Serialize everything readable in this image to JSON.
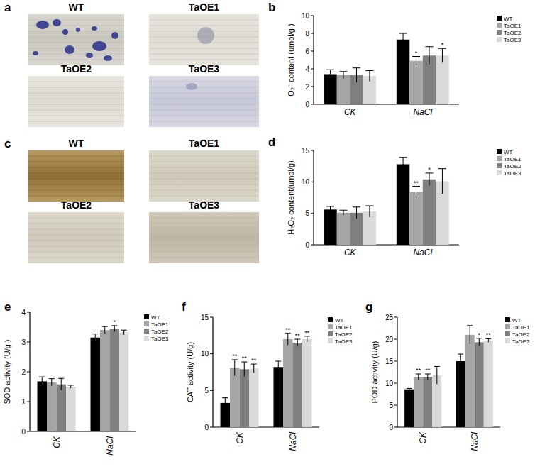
{
  "image_panels": [
    {
      "label": "a",
      "labels": [
        "WT",
        "TaOE1",
        "TaOE2",
        "TaOE3"
      ]
    },
    {
      "label": "c",
      "labels": [
        "WT",
        "TaOE1",
        "TaOE2",
        "TaOE3"
      ]
    }
  ],
  "chart_data": [
    {
      "type": "bar",
      "label": "b",
      "y_label": "O₂⁻ content (umol/g )",
      "categories": [
        "CK",
        "NaCl"
      ],
      "ylim": [
        0,
        10
      ],
      "yticks": [
        0,
        2,
        4,
        6,
        8,
        10
      ],
      "grid": false,
      "legend": "right",
      "series": [
        {
          "name": "WT",
          "color": "#000000",
          "values": [
            3.4,
            7.3
          ],
          "errors": [
            0.5,
            0.7
          ],
          "annotations": [
            null,
            null
          ]
        },
        {
          "name": "TaOE1",
          "color": "#a6a6a6",
          "values": [
            3.3,
            4.9
          ],
          "errors": [
            0.4,
            0.5
          ],
          "annotations": [
            null,
            "*"
          ]
        },
        {
          "name": "TaOE2",
          "color": "#7f7f7f",
          "values": [
            3.3,
            5.5
          ],
          "errors": [
            0.8,
            1.0
          ],
          "annotations": [
            null,
            null
          ]
        },
        {
          "name": "TaOE3",
          "color": "#d9d9d9",
          "values": [
            3.2,
            5.5
          ],
          "errors": [
            0.6,
            0.8
          ],
          "annotations": [
            null,
            "*"
          ]
        }
      ]
    },
    {
      "type": "bar",
      "label": "d",
      "y_label": "H₂O₂ content(umol/g)",
      "categories": [
        "CK",
        "NaCl"
      ],
      "ylim": [
        0,
        15
      ],
      "yticks": [
        0,
        5,
        10,
        15
      ],
      "grid": false,
      "legend": "right",
      "series": [
        {
          "name": "WT",
          "color": "#000000",
          "values": [
            5.6,
            12.8
          ],
          "errors": [
            0.5,
            1.1
          ],
          "annotations": [
            null,
            null
          ]
        },
        {
          "name": "TaOE1",
          "color": "#a6a6a6",
          "values": [
            5.1,
            8.4
          ],
          "errors": [
            0.4,
            0.9
          ],
          "annotations": [
            null,
            "**"
          ]
        },
        {
          "name": "TaOE2",
          "color": "#7f7f7f",
          "values": [
            5.1,
            10.4
          ],
          "errors": [
            0.9,
            1.0
          ],
          "annotations": [
            null,
            "*"
          ]
        },
        {
          "name": "TaOE3",
          "color": "#d9d9d9",
          "values": [
            5.3,
            10.1
          ],
          "errors": [
            0.9,
            2.0
          ],
          "annotations": [
            null,
            null
          ]
        }
      ]
    },
    {
      "type": "bar",
      "label": "e",
      "y_label": "SOD activity (U/g )",
      "categories": [
        "CK",
        "NaCl"
      ],
      "ylim": [
        0,
        4
      ],
      "yticks": [
        0,
        1,
        2,
        3,
        4
      ],
      "grid": false,
      "legend": "right",
      "series": [
        {
          "name": "WT",
          "color": "#000000",
          "values": [
            1.68,
            3.15
          ],
          "errors": [
            0.15,
            0.12
          ],
          "annotations": [
            null,
            null
          ]
        },
        {
          "name": "TaOE1",
          "color": "#a6a6a6",
          "values": [
            1.65,
            3.4
          ],
          "errors": [
            0.12,
            0.12
          ],
          "annotations": [
            null,
            null
          ]
        },
        {
          "name": "TaOE2",
          "color": "#7f7f7f",
          "values": [
            1.58,
            3.45
          ],
          "errors": [
            0.2,
            0.1
          ],
          "annotations": [
            null,
            "*"
          ]
        },
        {
          "name": "TaOE3",
          "color": "#d9d9d9",
          "values": [
            1.5,
            3.32
          ],
          "errors": [
            0.05,
            0.08
          ],
          "annotations": [
            null,
            null
          ]
        }
      ]
    },
    {
      "type": "bar",
      "label": "f",
      "y_label": "CAT activity (U/g)",
      "categories": [
        "CK",
        "NaCl"
      ],
      "ylim": [
        0,
        15
      ],
      "yticks": [
        0,
        5,
        10,
        15
      ],
      "grid": false,
      "legend": "right",
      "series": [
        {
          "name": "WT",
          "color": "#000000",
          "values": [
            3.3,
            8.2
          ],
          "errors": [
            0.7,
            0.8
          ],
          "annotations": [
            null,
            null
          ]
        },
        {
          "name": "TaOE1",
          "color": "#a6a6a6",
          "values": [
            8.1,
            12.0
          ],
          "errors": [
            1.1,
            0.8
          ],
          "annotations": [
            "**",
            "**"
          ]
        },
        {
          "name": "TaOE2",
          "color": "#7f7f7f",
          "values": [
            7.9,
            11.5
          ],
          "errors": [
            1.0,
            0.5
          ],
          "annotations": [
            "**",
            "**"
          ]
        },
        {
          "name": "TaOE3",
          "color": "#d9d9d9",
          "values": [
            8.0,
            12.0
          ],
          "errors": [
            0.6,
            0.4
          ],
          "annotations": [
            "**",
            "**"
          ]
        }
      ]
    },
    {
      "type": "bar",
      "label": "g",
      "y_label": "POD activity (U/g)",
      "categories": [
        "CK",
        "NaCl"
      ],
      "ylim": [
        0,
        25
      ],
      "yticks": [
        0,
        5,
        10,
        15,
        20,
        25
      ],
      "grid": false,
      "legend": "right",
      "series": [
        {
          "name": "WT",
          "color": "#000000",
          "values": [
            8.6,
            15.0
          ],
          "errors": [
            0.2,
            1.6
          ],
          "annotations": [
            null,
            null
          ]
        },
        {
          "name": "TaOE1",
          "color": "#a6a6a6",
          "values": [
            11.4,
            21.0
          ],
          "errors": [
            0.7,
            2.1
          ],
          "annotations": [
            "**",
            null
          ]
        },
        {
          "name": "TaOE2",
          "color": "#7f7f7f",
          "values": [
            11.4,
            19.3
          ],
          "errors": [
            0.7,
            0.9
          ],
          "annotations": [
            "**",
            "*"
          ]
        },
        {
          "name": "TaOE3",
          "color": "#d9d9d9",
          "values": [
            11.8,
            19.7
          ],
          "errors": [
            2.0,
            0.4
          ],
          "annotations": [
            null,
            "**"
          ]
        }
      ]
    }
  ]
}
